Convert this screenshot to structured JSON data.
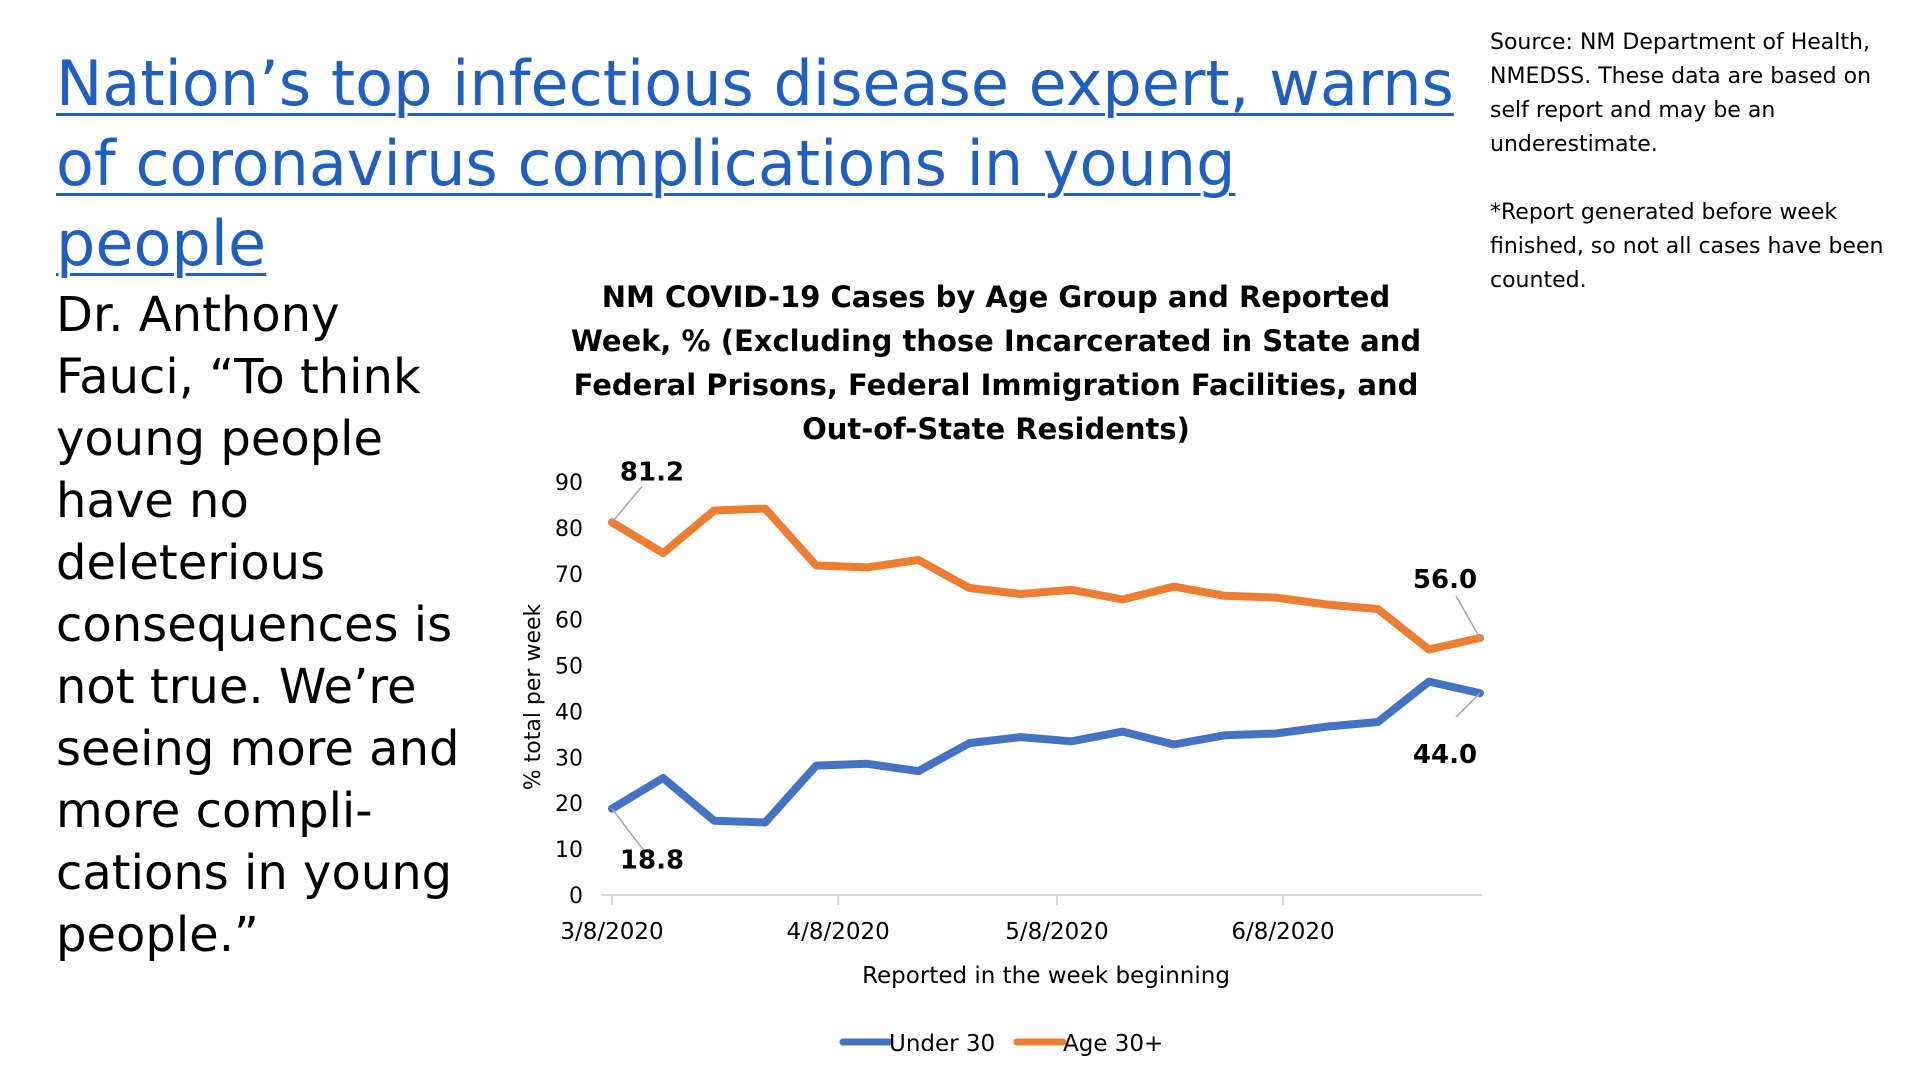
{
  "headline": "Nation’s top infectious disease expert, warns of coronavirus complications in young people",
  "quote": "Dr. Anthony Fauci, “To think young people have no deleterious consequences is not true. We’re seeing more and more compli-cations in young people.”",
  "source_note": [
    "Source: NM Department of Health, NMEDSS. These data are based on self report and may be an underestimate.",
    "*Report generated before week finished, so not all cases have been counted."
  ],
  "colors": {
    "headline": "#1f5fbf",
    "under30": "#4472c4",
    "age30plus": "#ed7d31",
    "axis": "#d9d9d9"
  },
  "chart_data": {
    "type": "line",
    "title": "NM COVID-19 Cases by Age Group and Reported Week, % (Excluding those Incarcerated in State and Federal Prisons, Federal Immigration Facilities, and Out-of-State Residents)",
    "title_lines": [
      "NM COVID-19 Cases by Age Group and Reported",
      "Week, % (Excluding those Incarcerated in State and",
      "Federal Prisons, Federal Immigration Facilities, and",
      "Out-of-State Residents)"
    ],
    "xlabel": "Reported in the week beginning",
    "ylabel": "% total per week",
    "ylim": [
      0,
      90
    ],
    "yticks": [
      0,
      10,
      20,
      30,
      40,
      50,
      60,
      70,
      80,
      90
    ],
    "x": [
      "3/8/2020",
      "3/15/2020",
      "3/22/2020",
      "3/29/2020",
      "4/5/2020",
      "4/12/2020",
      "4/19/2020",
      "4/26/2020",
      "5/3/2020",
      "5/10/2020",
      "5/17/2020",
      "5/24/2020",
      "5/31/2020",
      "6/7/2020",
      "6/14/2020",
      "6/21/2020",
      "6/28/2020",
      "7/5/2020"
    ],
    "xtick_labels": [
      "3/8/2020",
      "4/8/2020",
      "5/8/2020",
      "6/8/2020"
    ],
    "series": [
      {
        "name": "Under 30",
        "values": [
          18.8,
          25.5,
          16.2,
          15.8,
          28.2,
          28.6,
          27.0,
          33.1,
          34.4,
          33.5,
          35.6,
          32.8,
          34.8,
          35.2,
          36.7,
          37.7,
          46.5,
          44.0
        ]
      },
      {
        "name": "Age 30+",
        "values": [
          81.2,
          74.5,
          83.8,
          84.2,
          71.8,
          71.4,
          73.0,
          66.9,
          65.6,
          66.5,
          64.4,
          67.2,
          65.2,
          64.8,
          63.3,
          62.3,
          53.5,
          56.0
        ]
      }
    ],
    "data_labels": [
      {
        "series": "Age 30+",
        "x": "3/8/2020",
        "text": "81.2"
      },
      {
        "series": "Under 30",
        "x": "3/8/2020",
        "text": "18.8"
      },
      {
        "series": "Age 30+",
        "x": "7/5/2020",
        "text": "56.0"
      },
      {
        "series": "Under 30",
        "x": "7/5/2020",
        "text": "44.0"
      }
    ],
    "legend_position": "bottom",
    "grid": false
  }
}
